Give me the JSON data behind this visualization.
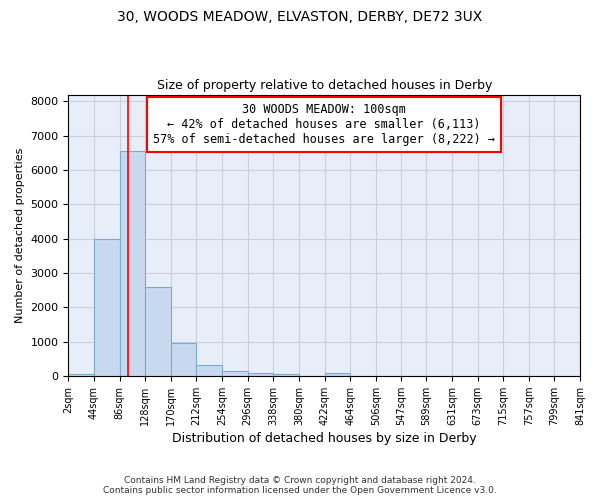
{
  "title1": "30, WOODS MEADOW, ELVASTON, DERBY, DE72 3UX",
  "title2": "Size of property relative to detached houses in Derby",
  "xlabel": "Distribution of detached houses by size in Derby",
  "ylabel": "Number of detached properties",
  "bin_edges": [
    2,
    44,
    86,
    128,
    170,
    212,
    254,
    296,
    338,
    380,
    422,
    464,
    506,
    547,
    589,
    631,
    673,
    715,
    757,
    799,
    841
  ],
  "bin_counts": [
    60,
    4000,
    6550,
    2600,
    950,
    330,
    130,
    80,
    60,
    0,
    80,
    0,
    0,
    0,
    0,
    0,
    0,
    0,
    0,
    0
  ],
  "bar_color": "#c8d8ee",
  "bar_edge_color": "#7aaccc",
  "bar_linewidth": 0.8,
  "grid_color": "#c8d0e0",
  "background_color": "#e8eef8",
  "red_line_x": 100,
  "annotation_line1": "30 WOODS MEADOW: 100sqm",
  "annotation_line2": "← 42% of detached houses are smaller (6,113)",
  "annotation_line3": "57% of semi-detached houses are larger (8,222) →",
  "ylim": [
    0,
    8200
  ],
  "yticks": [
    0,
    1000,
    2000,
    3000,
    4000,
    5000,
    6000,
    7000,
    8000
  ],
  "footer1": "Contains HM Land Registry data © Crown copyright and database right 2024.",
  "footer2": "Contains public sector information licensed under the Open Government Licence v3.0.",
  "tick_labels": [
    "2sqm",
    "44sqm",
    "86sqm",
    "128sqm",
    "170sqm",
    "212sqm",
    "254sqm",
    "296sqm",
    "338sqm",
    "380sqm",
    "422sqm",
    "464sqm",
    "506sqm",
    "547sqm",
    "589sqm",
    "631sqm",
    "673sqm",
    "715sqm",
    "757sqm",
    "799sqm",
    "841sqm"
  ]
}
